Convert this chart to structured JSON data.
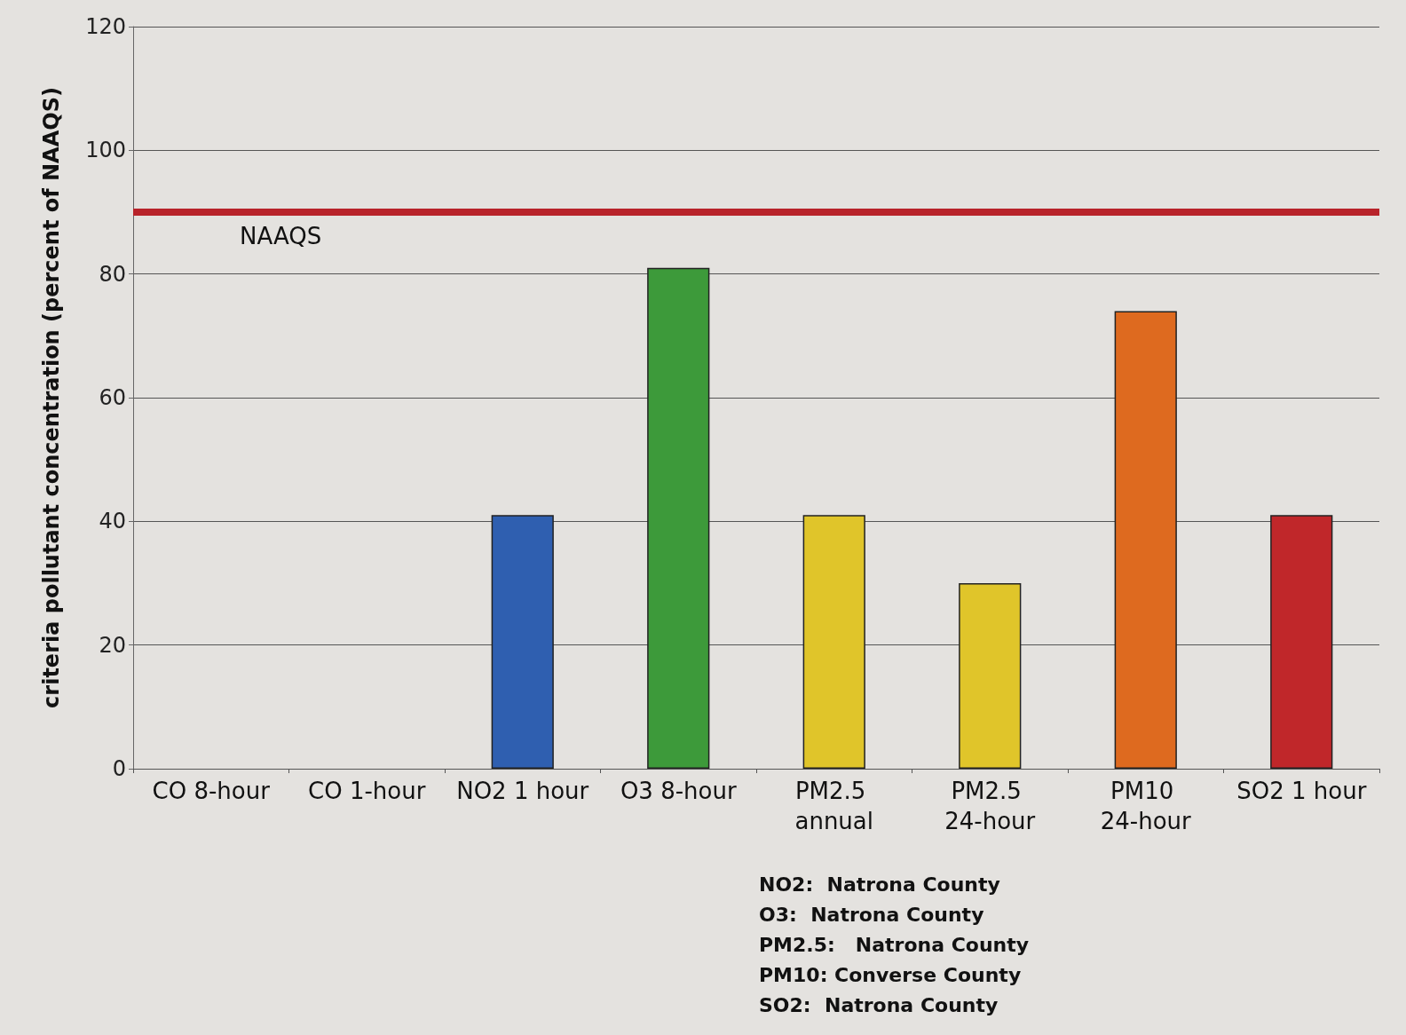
{
  "chart_data": {
    "type": "bar",
    "ylabel": "criteria pollutant concentration (percent of NAAQS)",
    "categories": [
      "CO 8-hour",
      "CO 1-hour",
      "NO2 1 hour",
      "O3 8-hour",
      "PM2.5 annual",
      "PM2.5 24-hour",
      "PM10 24-hour",
      "SO2 1 hour"
    ],
    "values": [
      null,
      null,
      41,
      81,
      41,
      30,
      74,
      41
    ],
    "colors": [
      "#2f5fb0",
      "#2f5fb0",
      "#2f5fb0",
      "#3d9a3a",
      "#e0c52a",
      "#e0c52a",
      "#de6a1f",
      "#c0272a"
    ],
    "ylim": [
      0,
      120
    ],
    "yticks": [
      0,
      20,
      40,
      60,
      80,
      100,
      120
    ],
    "grid": "y",
    "ref_lines": [
      {
        "axis": "y",
        "value": 90,
        "label": "NAAQS",
        "color": "#b8232a"
      }
    ],
    "annotations": [
      "NO2:  Natrona County",
      "O3:  Natrona County",
      "PM2.5:   Natrona County",
      "PM10: Converse County",
      "SO2:  Natrona County"
    ]
  }
}
